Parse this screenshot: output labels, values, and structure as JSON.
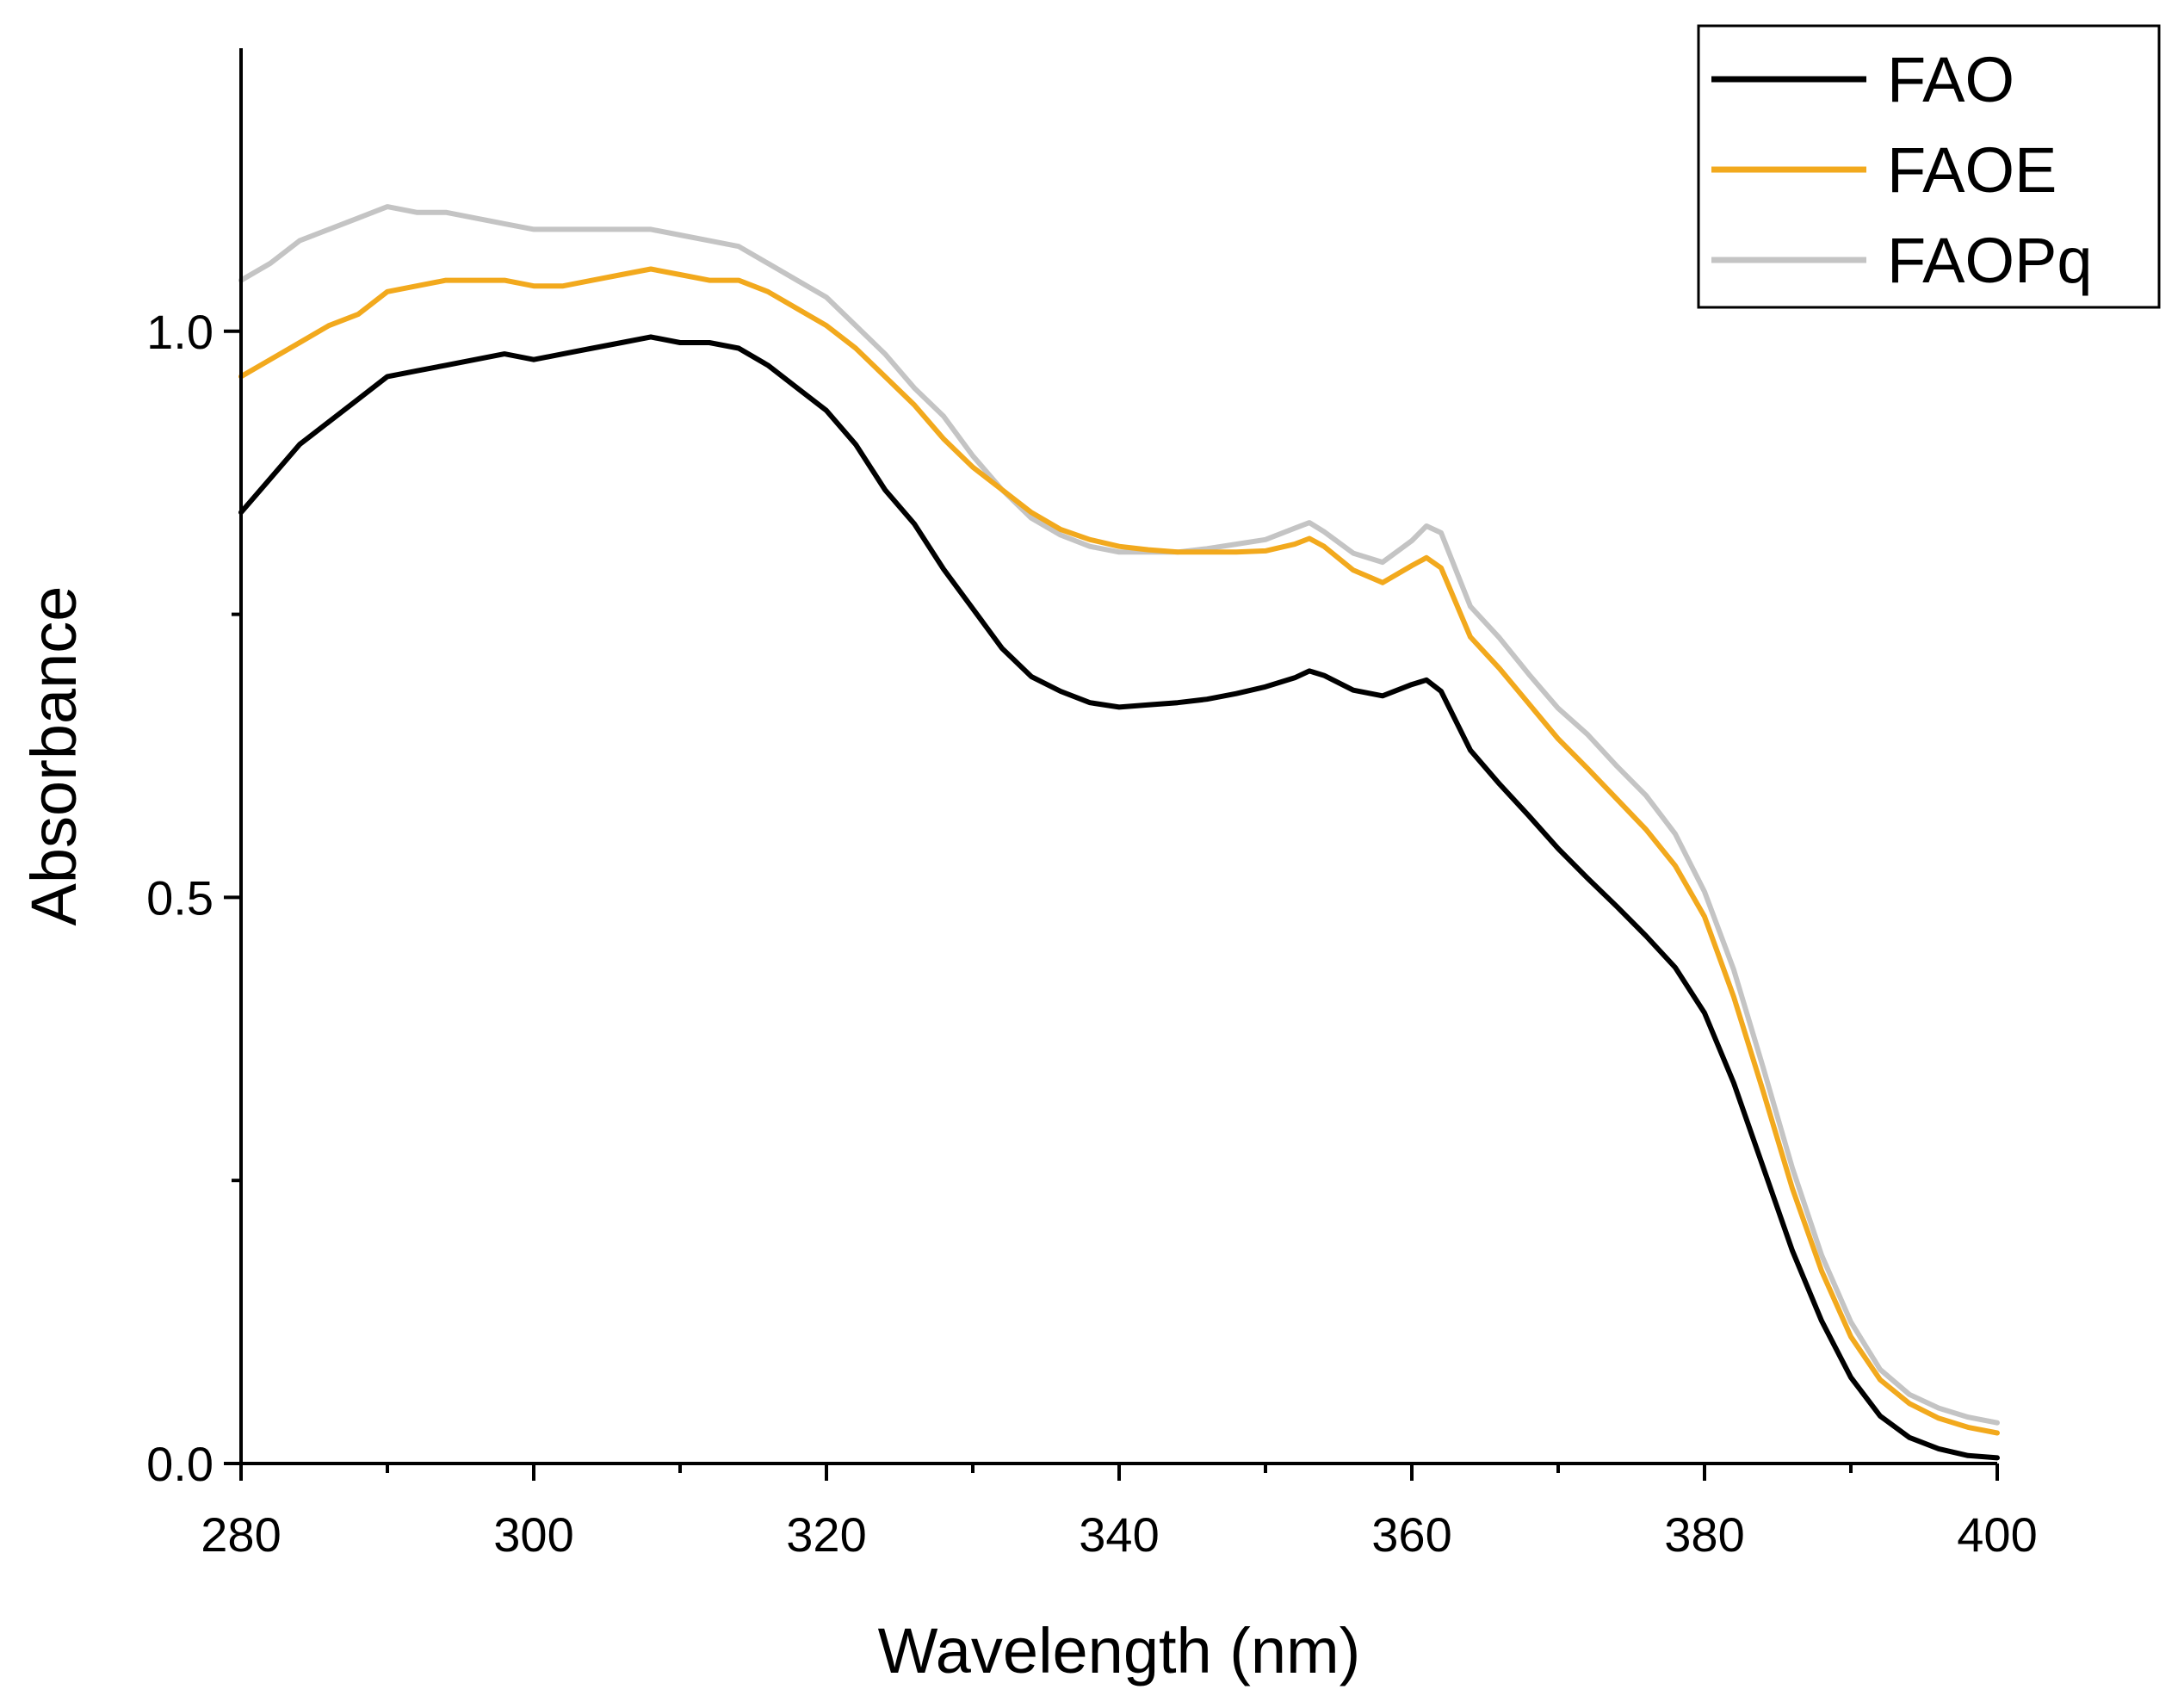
{
  "chart_data": {
    "type": "line",
    "title": "",
    "xlabel": "Wavelength (nm)",
    "ylabel": "Absorbance",
    "xlim": [
      280,
      400
    ],
    "ylim": [
      0,
      1.25
    ],
    "xticks": [
      280,
      300,
      320,
      340,
      360,
      380,
      400
    ],
    "xtick_labels": [
      "280",
      "300",
      "320",
      "340",
      "360",
      "380",
      "400"
    ],
    "xminor": [
      290,
      310,
      330,
      350,
      370,
      390
    ],
    "yticks": [
      0,
      0.5,
      1.0
    ],
    "ytick_labels": [
      "0.0",
      "0.5",
      "1.0"
    ],
    "yminor": [
      0.25,
      0.75
    ],
    "grid": false,
    "legend_position": "top-right",
    "x": [
      280,
      282,
      284,
      286,
      288,
      290,
      292,
      294,
      296,
      298,
      300,
      302,
      304,
      306,
      308,
      310,
      312,
      314,
      316,
      318,
      320,
      322,
      324,
      326,
      328,
      330,
      332,
      334,
      336,
      338,
      340,
      342,
      344,
      346,
      348,
      350,
      352,
      353,
      354,
      356,
      358,
      360,
      361,
      362,
      364,
      366,
      368,
      370,
      372,
      374,
      376,
      378,
      380,
      382,
      384,
      386,
      388,
      390,
      392,
      394,
      396,
      398,
      400
    ],
    "series": [
      {
        "name": "FAO",
        "color": "#000000",
        "values": [
          0.84,
          0.87,
          0.9,
          0.92,
          0.94,
          0.96,
          0.965,
          0.97,
          0.975,
          0.98,
          0.975,
          0.98,
          0.985,
          0.99,
          0.995,
          0.99,
          0.99,
          0.985,
          0.97,
          0.95,
          0.93,
          0.9,
          0.86,
          0.83,
          0.79,
          0.755,
          0.72,
          0.695,
          0.682,
          0.672,
          0.668,
          0.67,
          0.672,
          0.675,
          0.68,
          0.686,
          0.694,
          0.7,
          0.696,
          0.683,
          0.678,
          0.688,
          0.692,
          0.682,
          0.63,
          0.6,
          0.572,
          0.543,
          0.517,
          0.492,
          0.466,
          0.438,
          0.398,
          0.336,
          0.262,
          0.188,
          0.126,
          0.076,
          0.042,
          0.023,
          0.013,
          0.007,
          0.005
        ]
      },
      {
        "name": "FAOE",
        "color": "#F2A91D",
        "values": [
          0.96,
          0.975,
          0.99,
          1.005,
          1.015,
          1.035,
          1.04,
          1.045,
          1.045,
          1.045,
          1.04,
          1.04,
          1.045,
          1.05,
          1.055,
          1.05,
          1.045,
          1.045,
          1.035,
          1.02,
          1.005,
          0.985,
          0.96,
          0.935,
          0.905,
          0.88,
          0.86,
          0.84,
          0.825,
          0.816,
          0.81,
          0.807,
          0.805,
          0.805,
          0.805,
          0.806,
          0.812,
          0.817,
          0.81,
          0.789,
          0.778,
          0.793,
          0.8,
          0.791,
          0.73,
          0.702,
          0.671,
          0.64,
          0.614,
          0.587,
          0.56,
          0.528,
          0.483,
          0.412,
          0.329,
          0.243,
          0.17,
          0.112,
          0.074,
          0.053,
          0.04,
          0.032,
          0.027
        ]
      },
      {
        "name": "FAOPq",
        "color": "#C4C4C4",
        "values": [
          1.045,
          1.06,
          1.08,
          1.09,
          1.1,
          1.11,
          1.105,
          1.105,
          1.1,
          1.095,
          1.09,
          1.09,
          1.09,
          1.09,
          1.09,
          1.085,
          1.08,
          1.075,
          1.06,
          1.045,
          1.03,
          1.005,
          0.98,
          0.95,
          0.925,
          0.89,
          0.86,
          0.835,
          0.82,
          0.81,
          0.805,
          0.805,
          0.805,
          0.808,
          0.812,
          0.816,
          0.826,
          0.831,
          0.823,
          0.804,
          0.796,
          0.815,
          0.828,
          0.822,
          0.757,
          0.729,
          0.697,
          0.667,
          0.644,
          0.616,
          0.59,
          0.556,
          0.505,
          0.436,
          0.35,
          0.261,
          0.184,
          0.125,
          0.083,
          0.061,
          0.049,
          0.041,
          0.036
        ]
      }
    ]
  }
}
